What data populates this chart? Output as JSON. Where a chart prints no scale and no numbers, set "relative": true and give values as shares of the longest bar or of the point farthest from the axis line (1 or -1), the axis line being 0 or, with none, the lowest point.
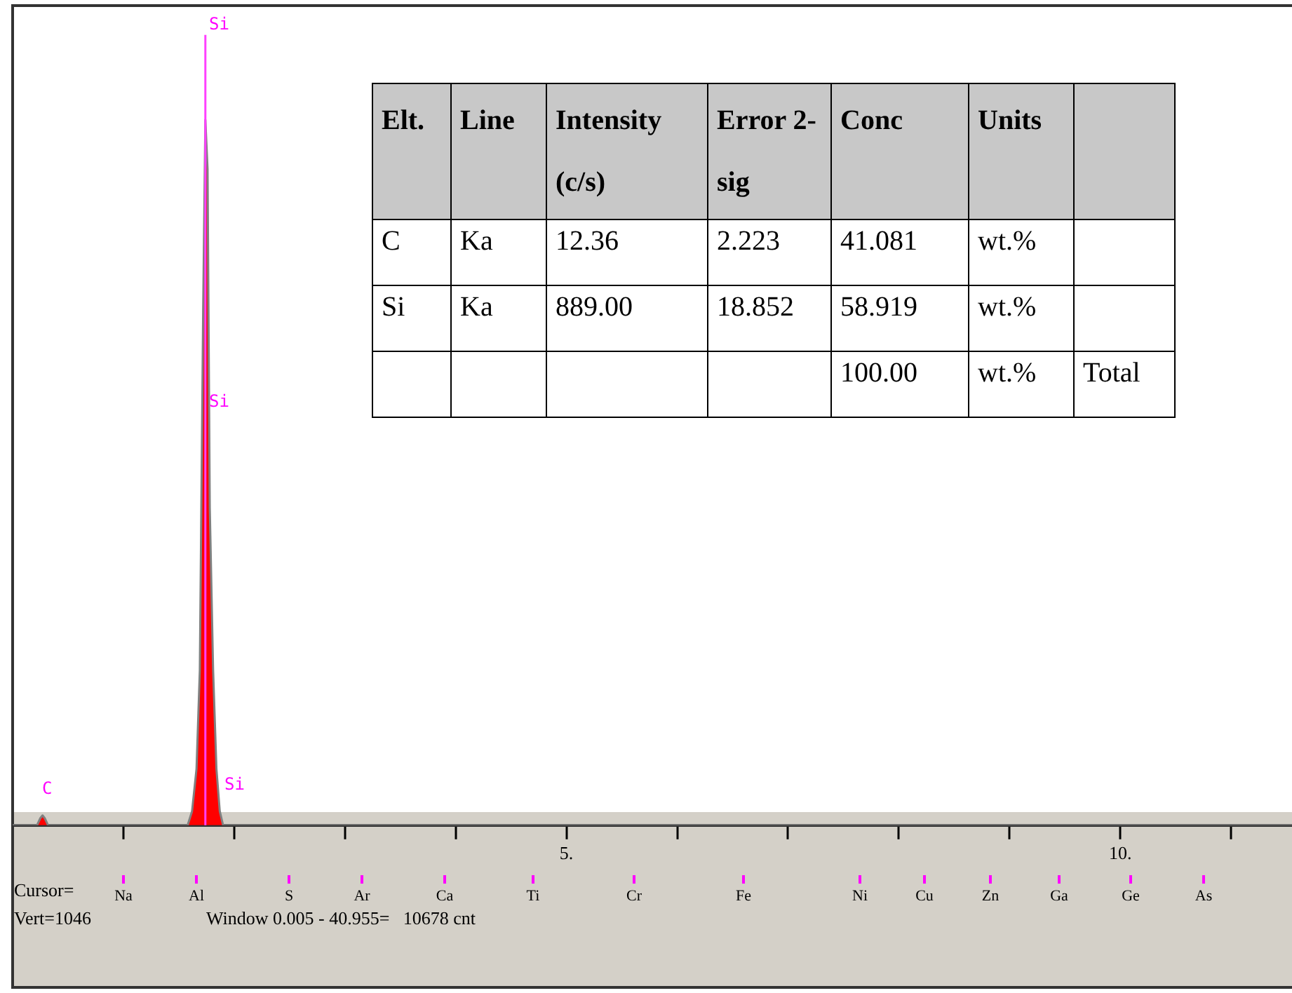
{
  "chart_data": [
    {
      "type": "area",
      "relative": true,
      "color": "#ff0000",
      "x": [
        0,
        0.22,
        0.25,
        0.27,
        0.29,
        0.32,
        1.58,
        1.62,
        1.66,
        1.69,
        1.72,
        1.74,
        1.76,
        1.78,
        1.81,
        1.84,
        1.87,
        1.9,
        11.55
      ],
      "values": [
        0,
        0,
        0.01,
        0.014,
        0.01,
        0,
        0,
        0.02,
        0.08,
        0.22,
        0.73,
        1,
        0.93,
        0.45,
        0.22,
        0.08,
        0.02,
        0,
        0
      ],
      "xlim": [
        0,
        11.55
      ],
      "xticks": [
        {
          "value": 1,
          "label": null
        },
        {
          "value": 2,
          "label": null
        },
        {
          "value": 3,
          "label": null
        },
        {
          "value": 4,
          "label": null
        },
        {
          "value": 5,
          "label": "5."
        },
        {
          "value": 6,
          "label": null
        },
        {
          "value": 7,
          "label": null
        },
        {
          "value": 8,
          "label": null
        },
        {
          "value": 9,
          "label": null
        },
        {
          "value": 10,
          "label": "10."
        },
        {
          "value": 11,
          "label": null
        }
      ],
      "ref_lines": [
        {
          "axis": "x",
          "value": 1.74,
          "color": "#ff40ff"
        }
      ],
      "annotations": [
        "Si",
        "Si",
        "Si",
        "C",
        "Cursor=",
        "Na",
        "Al",
        "S",
        "Ar",
        "Ca",
        "Ti",
        "Cr",
        "Fe",
        "Ni",
        "Cu",
        "Zn",
        "Ga",
        "Ge",
        "As",
        "Vert=1046",
        "Window 0.005 - 40.955=   10678 cnt"
      ],
      "grid": false,
      "legend": false
    },
    {
      "type": "other",
      "categories": [
        "Elt.",
        "Line",
        "Intensity (c/s)",
        "Error 2-sig",
        "Conc",
        "Units",
        null
      ],
      "cell_labels": [
        [
          "C",
          "Ka",
          "12.36",
          "2.223",
          "41.081",
          "wt.%",
          null
        ],
        [
          "Si",
          "Ka",
          "889.00",
          "18.852",
          "58.919",
          "wt.%",
          null
        ],
        [
          null,
          null,
          null,
          null,
          "100.00",
          "wt.%",
          "Total"
        ]
      ]
    }
  ]
}
